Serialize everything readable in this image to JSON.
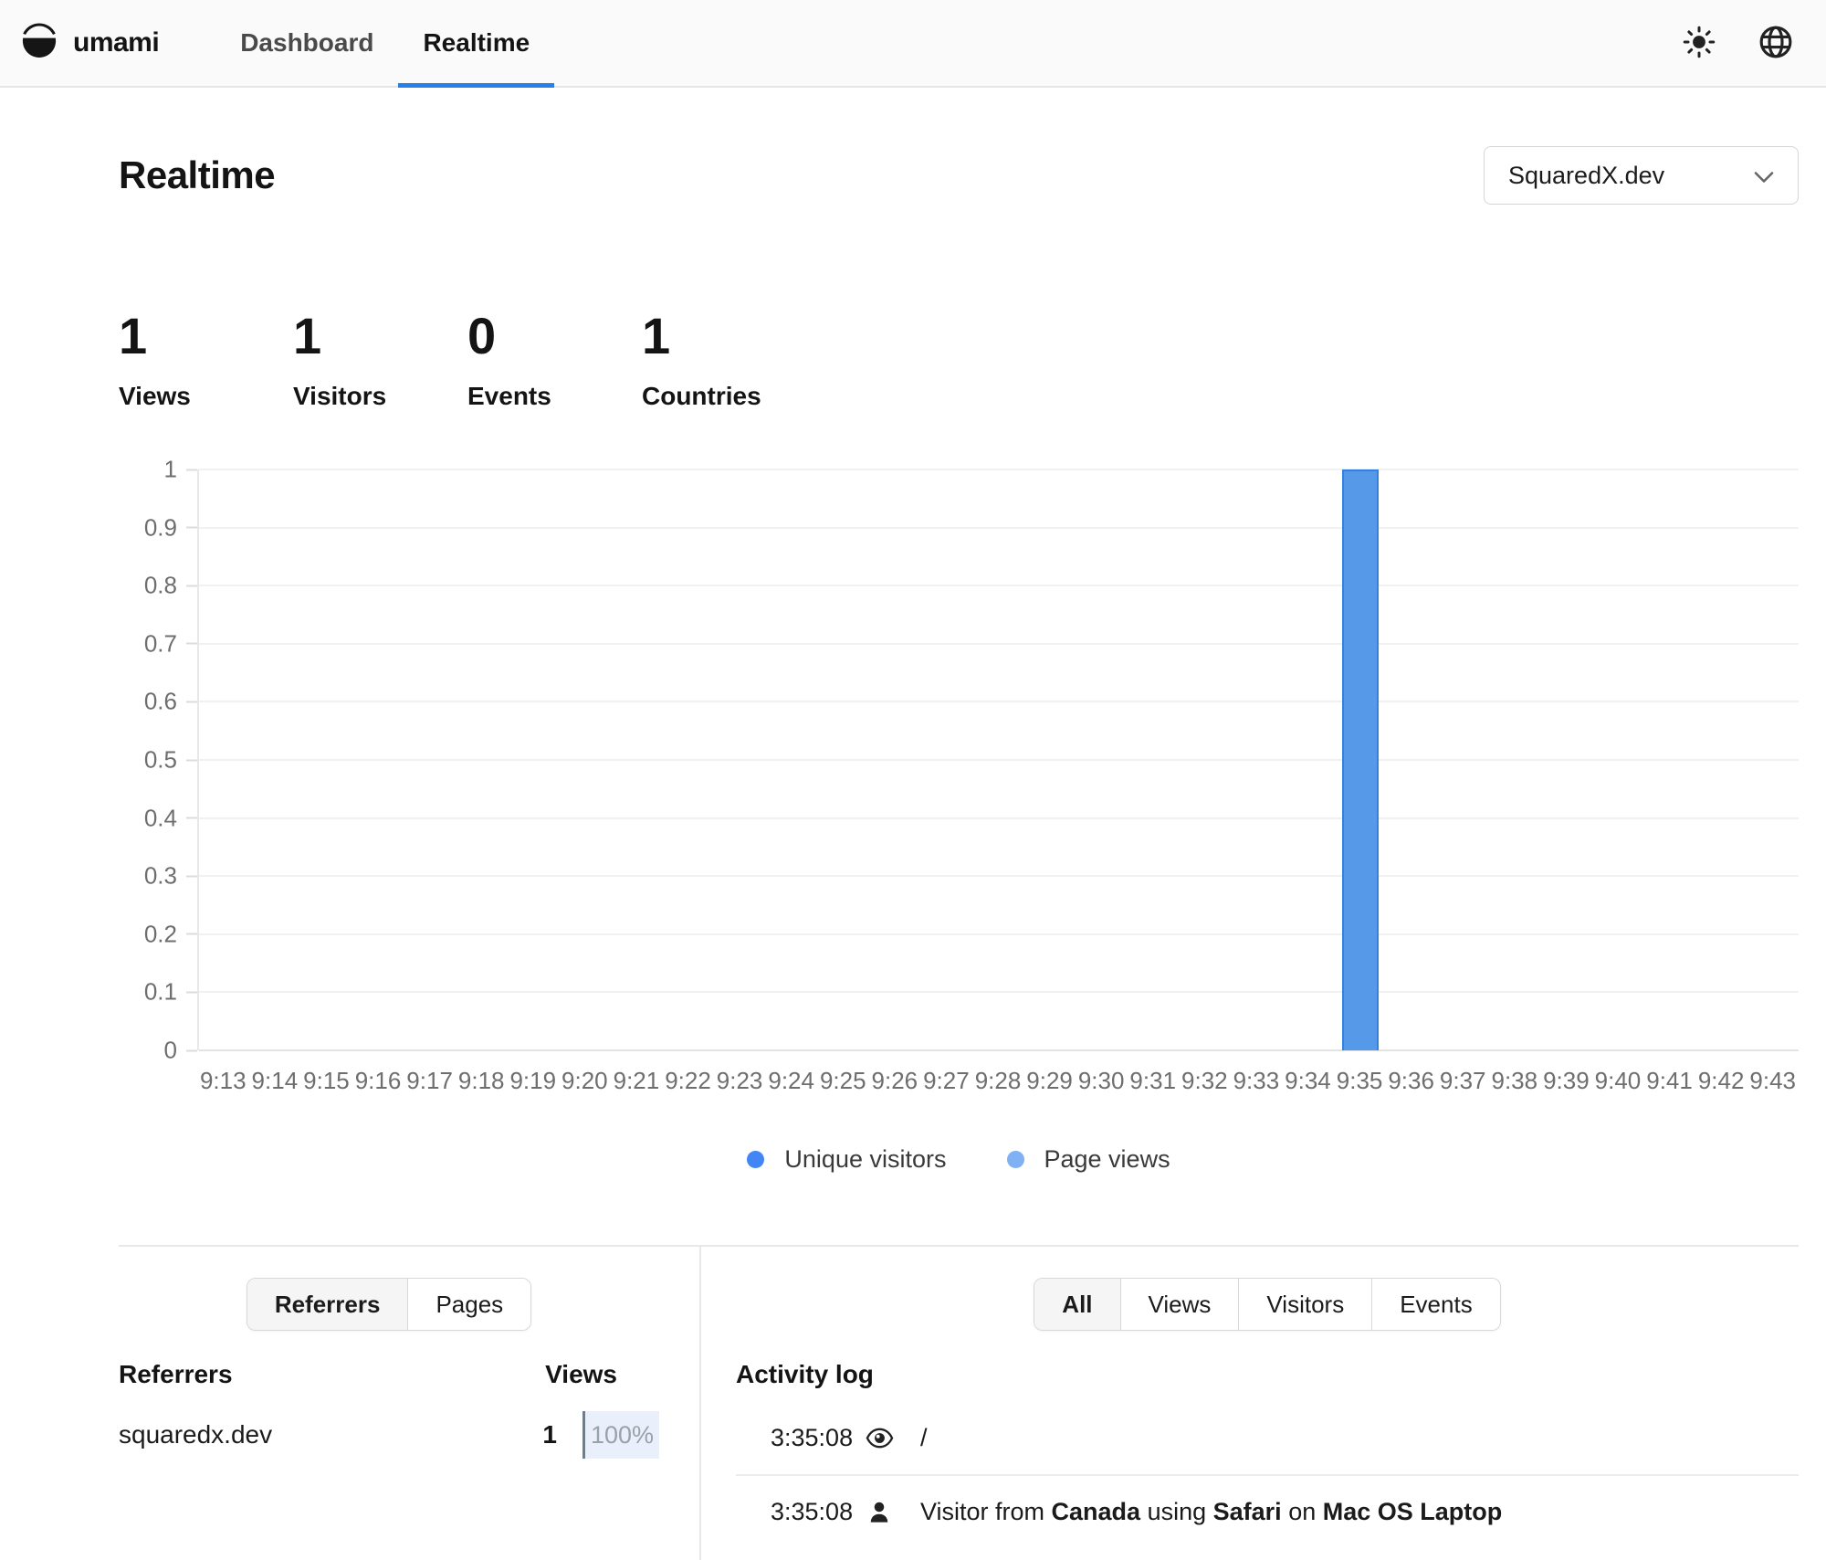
{
  "nav": {
    "brand": "umami",
    "items": [
      {
        "label": "Dashboard",
        "active": false
      },
      {
        "label": "Realtime",
        "active": true
      }
    ],
    "icons": [
      "theme-sun-icon",
      "language-globe-icon"
    ],
    "accent_color": "#2680eb"
  },
  "page": {
    "title": "Realtime",
    "website_selector": {
      "value": "SquaredX.dev"
    }
  },
  "stats": [
    {
      "value": "1",
      "label": "Views"
    },
    {
      "value": "1",
      "label": "Visitors"
    },
    {
      "value": "0",
      "label": "Events"
    },
    {
      "value": "1",
      "label": "Countries"
    }
  ],
  "chart_data": {
    "type": "bar",
    "x": [
      "9:13",
      "9:14",
      "9:15",
      "9:16",
      "9:17",
      "9:18",
      "9:19",
      "9:20",
      "9:21",
      "9:22",
      "9:23",
      "9:24",
      "9:25",
      "9:26",
      "9:27",
      "9:28",
      "9:29",
      "9:30",
      "9:31",
      "9:32",
      "9:33",
      "9:34",
      "9:35",
      "9:36",
      "9:37",
      "9:38",
      "9:39",
      "9:40",
      "9:41",
      "9:42",
      "9:43"
    ],
    "series": [
      {
        "name": "Unique visitors",
        "color": "#4285f4",
        "bar_fill": "#5599e8",
        "bar_border": "#3280e0",
        "values": [
          0,
          0,
          0,
          0,
          0,
          0,
          0,
          0,
          0,
          0,
          0,
          0,
          0,
          0,
          0,
          0,
          0,
          0,
          0,
          0,
          0,
          0,
          1,
          0,
          0,
          0,
          0,
          0,
          0,
          0,
          0
        ]
      },
      {
        "name": "Page views",
        "color": "#7fb1f4",
        "bar_fill": "#b3d1f6",
        "bar_border": "#8ab7ef",
        "values": [
          0,
          0,
          0,
          0,
          0,
          0,
          0,
          0,
          0,
          0,
          0,
          0,
          0,
          0,
          0,
          0,
          0,
          0,
          0,
          0,
          0,
          0,
          1,
          0,
          0,
          0,
          0,
          0,
          0,
          0,
          0
        ]
      }
    ],
    "ylim": [
      0,
      1
    ],
    "yticks_display": [
      "1",
      "0.9",
      "0.8",
      "0.7",
      "0.6",
      "0.5",
      "0.4",
      "0.3",
      "0.2",
      "0.1",
      "0"
    ],
    "grid": true,
    "legend_position": "bottom"
  },
  "referrers_panel": {
    "tabs": [
      {
        "label": "Referrers",
        "active": true
      },
      {
        "label": "Pages",
        "active": false
      }
    ],
    "table": {
      "name_header": "Referrers",
      "value_header": "Views",
      "rows": [
        {
          "name": "squaredx.dev",
          "value": "1",
          "percent": "100%"
        }
      ]
    }
  },
  "activity_panel": {
    "tabs": [
      {
        "label": "All",
        "active": true
      },
      {
        "label": "Views",
        "active": false
      },
      {
        "label": "Visitors",
        "active": false
      },
      {
        "label": "Events",
        "active": false
      }
    ],
    "title": "Activity log",
    "entries": [
      {
        "time": "3:35:08",
        "live": true,
        "icon": "eye-icon",
        "parts": [
          {
            "text": "/",
            "bold": false,
            "link": true
          }
        ]
      },
      {
        "time": "3:35:08",
        "live": false,
        "icon": "person-icon",
        "parts": [
          {
            "text": "Visitor from ",
            "bold": false
          },
          {
            "text": "Canada",
            "bold": true
          },
          {
            "text": " using ",
            "bold": false
          },
          {
            "text": "Safari",
            "bold": true
          },
          {
            "text": " on ",
            "bold": false
          },
          {
            "text": "Mac OS Laptop",
            "bold": true
          }
        ]
      }
    ]
  },
  "colors": {
    "accent": "#2680eb",
    "live_green": "#16a32f",
    "badge_bg": "#e9f0fb",
    "gridline": "#f1f1f1"
  }
}
